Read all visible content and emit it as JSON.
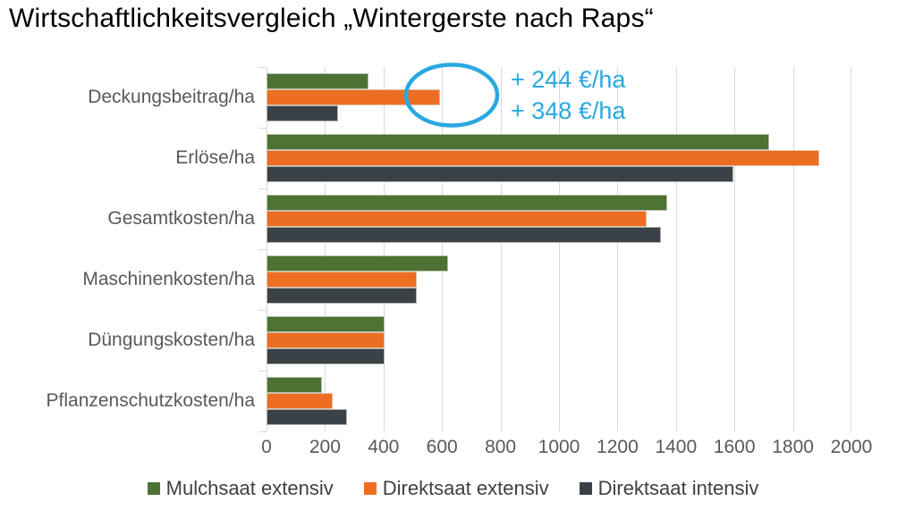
{
  "chart_data": {
    "type": "bar",
    "orientation": "horizontal",
    "title": "Wirtschaftlichkeitsvergleich „Wintergerste nach Raps“",
    "categories": [
      "Deckungsbeitrag/ha",
      "Erlöse/ha",
      "Gesamtkosten/ha",
      "Maschinenkosten/ha",
      "Düngungskosten/ha",
      "Pflanzenschutzkosten/ha"
    ],
    "series": [
      {
        "name": "Mulchsaat extensiv",
        "color": "#4d7233",
        "values": [
          348,
          1720,
          1370,
          620,
          405,
          190
        ]
      },
      {
        "name": "Direktsaat extensiv",
        "color": "#ec6e23",
        "values": [
          592,
          1890,
          1300,
          515,
          405,
          225
        ]
      },
      {
        "name": "Direktsaat intensiv",
        "color": "#3a4147",
        "values": [
          244,
          1595,
          1350,
          515,
          405,
          275
        ]
      }
    ],
    "xlim": [
      0,
      2000
    ],
    "x_ticks": [
      0,
      200,
      400,
      600,
      800,
      1000,
      1200,
      1400,
      1600,
      1800,
      2000
    ],
    "x_tick_labels": [
      "0",
      "200",
      "400",
      "600",
      "800",
      "1000",
      "1200",
      "1400",
      "1600",
      "1800",
      "2000"
    ],
    "grid": "vertical-on",
    "legend_position": "bottom",
    "colors": {
      "gridline": "#d9d9d9",
      "axis_text": "#595959",
      "legend_text": "#404040",
      "title_text": "#000000"
    }
  },
  "annotation": {
    "line1": "+ 244 €/ha",
    "line2": "+ 348 €/ha",
    "color": "#29a8e0",
    "target": "Deckungsbeitrag/ha Direktsaat extensiv bar"
  }
}
